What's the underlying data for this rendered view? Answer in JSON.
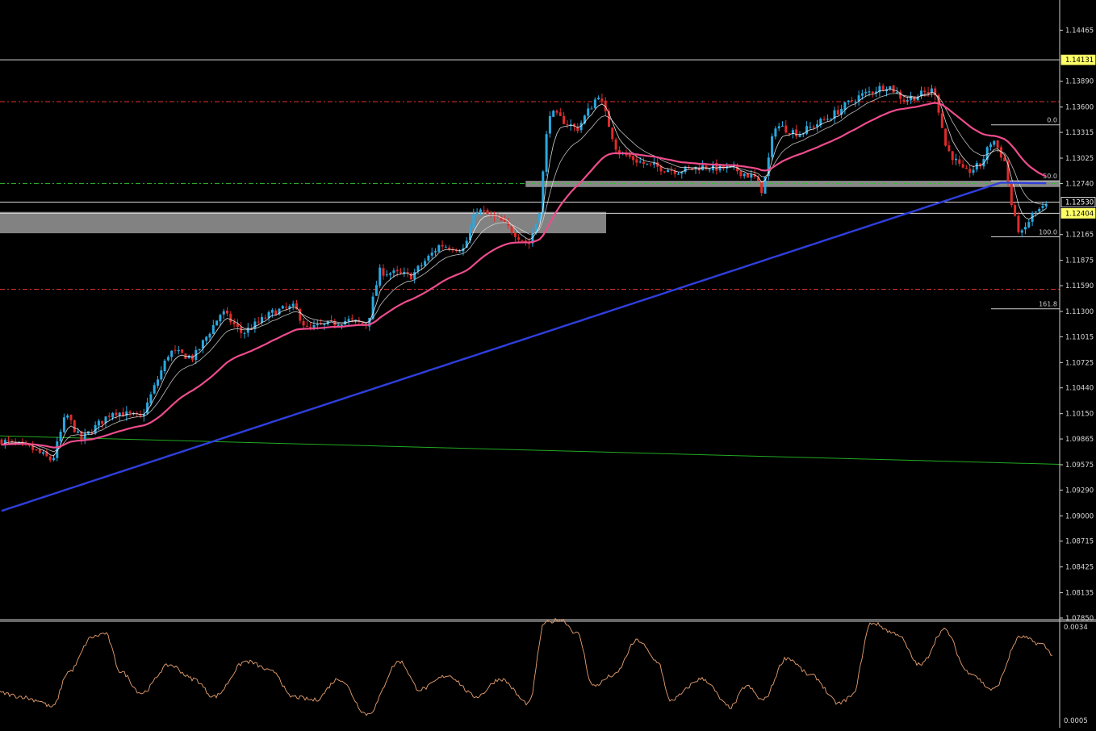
{
  "chart_data": [
    {
      "type": "candlestick",
      "panel": "price",
      "title": "",
      "xlabel": "",
      "ylabel": "",
      "ylim": [
        1.0785,
        1.1475
      ],
      "y_ticks": [
        "1.14465",
        "1.13890",
        "1.13600",
        "1.13315",
        "1.13025",
        "1.12740",
        "1.12165",
        "1.11875",
        "1.11590",
        "1.11300",
        "1.11015",
        "1.10725",
        "1.10440",
        "1.10150",
        "1.09865",
        "1.09575",
        "1.09290",
        "1.09000",
        "1.08715",
        "1.08425",
        "1.08135",
        "1.07850"
      ],
      "price_tags": [
        {
          "label": "1.14131",
          "value": 1.14131,
          "highlight": true,
          "color": "#ffff66"
        },
        {
          "label": "1.12530",
          "value": 1.1253,
          "highlight": false,
          "color": "#ffffff"
        },
        {
          "label": "1.12404",
          "value": 1.12404,
          "highlight": true,
          "color": "#ffff66"
        }
      ],
      "fibonacci": [
        {
          "label": "0.0",
          "value": 1.134
        },
        {
          "label": "50.0",
          "value": 1.1277
        },
        {
          "label": "100.0",
          "value": 1.1214
        },
        {
          "label": "161.8",
          "value": 1.1133
        }
      ],
      "horizontal_lines": [
        {
          "value": 1.14131,
          "color": "#d8d8d8",
          "style": "solid"
        },
        {
          "value": 1.1366,
          "color": "#e03030",
          "style": "dashdot"
        },
        {
          "value": 1.1274,
          "color": "#30c030",
          "style": "dashdot"
        },
        {
          "value": 1.1253,
          "color": "#d8d8d8",
          "style": "solid"
        },
        {
          "value": 1.12404,
          "color": "#d8d8d8",
          "style": "solid"
        },
        {
          "value": 1.1155,
          "color": "#e03030",
          "style": "dashdot"
        }
      ],
      "zones": [
        {
          "y_top": 1.1277,
          "y_bottom": 1.127,
          "x_start_frac": 0.496,
          "x_end_frac": 1.0,
          "color": "#a0a0a0"
        },
        {
          "y_top": 1.1242,
          "y_bottom": 1.1218,
          "x_start_frac": 0.0,
          "x_end_frac": 0.572,
          "color": "#999999"
        }
      ],
      "trendline": {
        "y_start": 1.099,
        "y_end": 1.0958,
        "color": "#22aa22"
      },
      "series": [
        {
          "name": "",
          "kind": "ma_fast",
          "color": "#ffffff"
        },
        {
          "name": "",
          "kind": "ma_mid",
          "color": "#dddddd"
        },
        {
          "name": "",
          "kind": "ma_slow",
          "color": "#ee4c8c"
        },
        {
          "name": "",
          "kind": "ma_long",
          "color": "#2f3fdd"
        }
      ],
      "candle_colors": {
        "up": "#2aa8e0",
        "down": "#e02b2b"
      },
      "grid": false,
      "legend": "none"
    },
    {
      "type": "line",
      "panel": "oscillator",
      "title": "",
      "y_ticks": [
        "0.0034",
        "0.0005"
      ],
      "ylim": [
        0.0005,
        0.0034
      ],
      "color": "#e8a070",
      "grid": false,
      "legend": "none"
    }
  ]
}
